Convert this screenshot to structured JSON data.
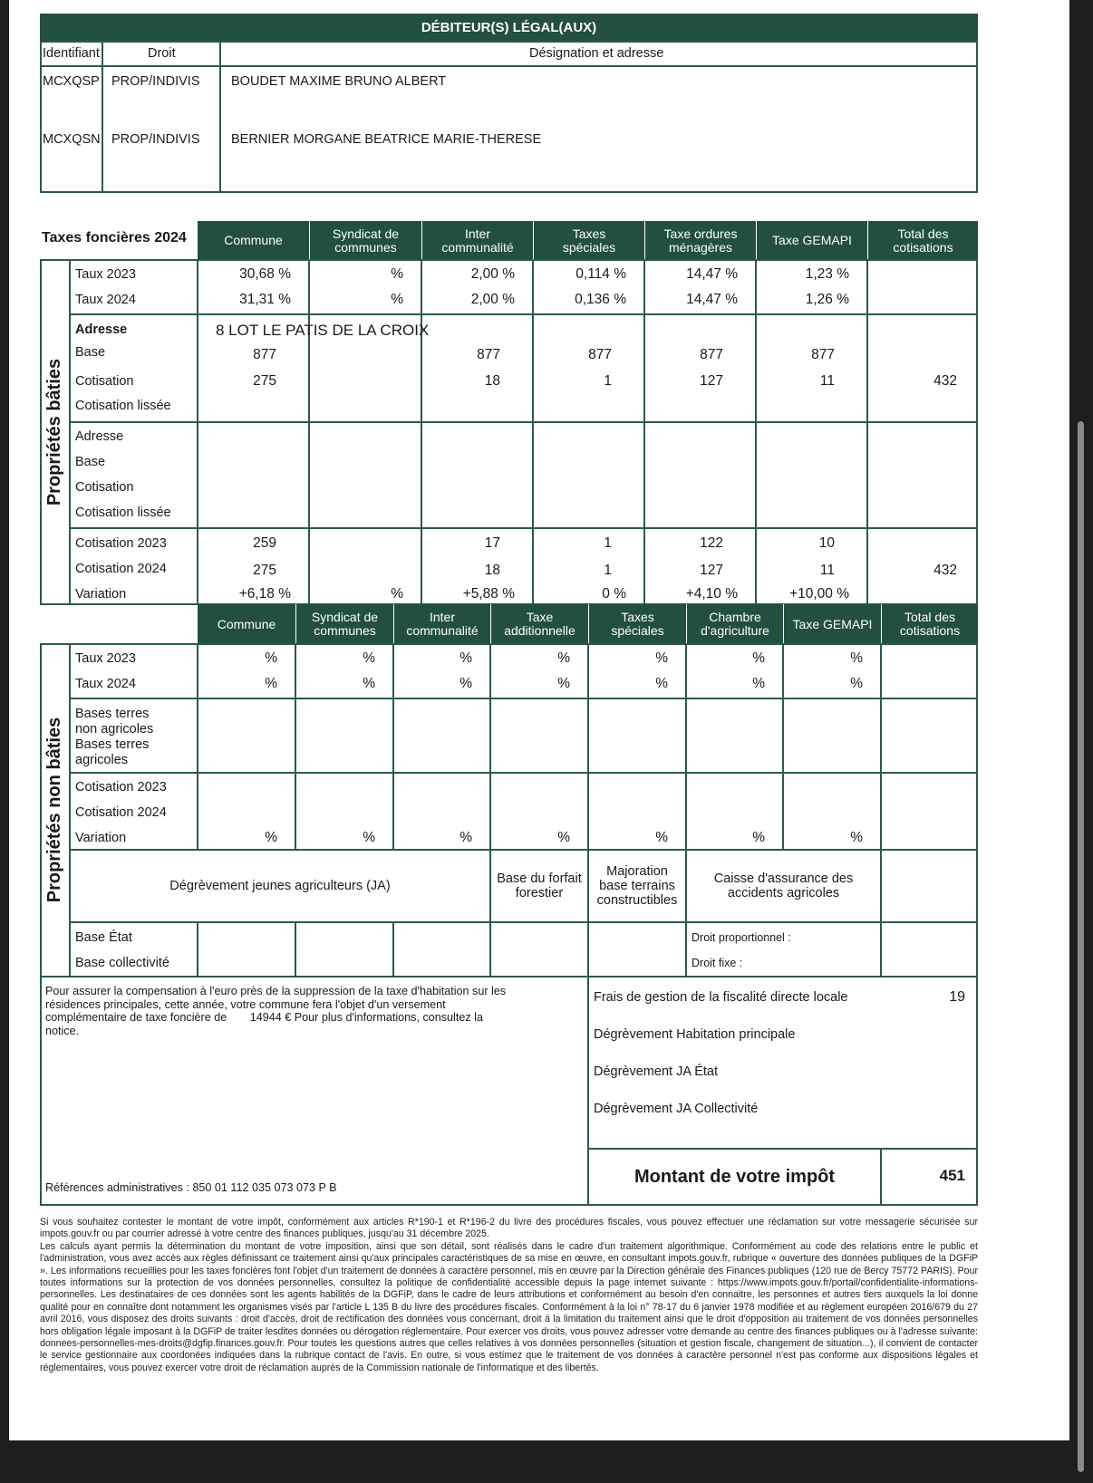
{
  "debiteurs": {
    "title": "DÉBITEUR(S) LÉGAL(AUX)",
    "headers": {
      "identifiant": "Identifiant",
      "droit": "Droit",
      "designation": "Désignation et adresse"
    },
    "rows": [
      {
        "id": "MCXQSP",
        "droit": "PROP/INDIVIS",
        "name": "BOUDET MAXIME BRUNO ALBERT"
      },
      {
        "id": "MCXQSN",
        "droit": "PROP/INDIVIS",
        "name": "BERNIER MORGANE BEATRICE MARIE-THERESE"
      }
    ]
  },
  "baties": {
    "title": "Taxes foncières 2024",
    "side_label": "Propriétés bâties",
    "columns": [
      "Commune",
      "Syndicat de communes",
      "Inter communalité",
      "Taxes spéciales",
      "Taxe ordures ménagères",
      "Taxe GEMAPI",
      "Total des cotisations"
    ],
    "taux": {
      "labels": [
        "Taux 2023",
        "Taux 2024"
      ],
      "rows": [
        [
          "30,68 %",
          "%",
          "2,00 %",
          "0,114 %",
          "14,47 %",
          "1,23 %",
          ""
        ],
        [
          "31,31 %",
          "%",
          "2,00 %",
          "0,136 %",
          "14,47 %",
          "1,26 %",
          ""
        ]
      ]
    },
    "property1": {
      "labels": [
        "Adresse",
        "Base",
        "Cotisation",
        "Cotisation lissée"
      ],
      "address": "8 LOT LE PATIS DE LA CROIX",
      "base": [
        "877",
        "",
        "877",
        "877",
        "877",
        "877",
        ""
      ],
      "cotisation": [
        "275",
        "",
        "18",
        "1",
        "127",
        "11",
        "432"
      ]
    },
    "property2": {
      "labels": [
        "Adresse",
        "Base",
        "Cotisation",
        "Cotisation lissée"
      ]
    },
    "summary": {
      "labels": [
        "Cotisation 2023",
        "Cotisation 2024",
        "Variation"
      ],
      "rows": [
        [
          "259",
          "",
          "17",
          "1",
          "122",
          "10",
          ""
        ],
        [
          "275",
          "",
          "18",
          "1",
          "127",
          "11",
          "432"
        ],
        [
          "+6,18 %",
          "%",
          "+5,88 %",
          "0 %",
          "+4,10 %",
          "+10,00 %",
          ""
        ]
      ]
    }
  },
  "non_baties": {
    "side_label": "Propriétés non bâties",
    "columns": [
      "Commune",
      "Syndicat de communes",
      "Inter communalité",
      "Taxe additionnelle",
      "Taxes spéciales",
      "Chambre d'agriculture",
      "Taxe GEMAPI",
      "Total des cotisations"
    ],
    "taux": {
      "labels": [
        "Taux 2023",
        "Taux 2024"
      ],
      "rows": [
        [
          "%",
          "%",
          "%",
          "%",
          "%",
          "%",
          "%",
          ""
        ],
        [
          "%",
          "%",
          "%",
          "%",
          "%",
          "%",
          "%",
          ""
        ]
      ]
    },
    "bases_labels": [
      "Bases terres",
      "non agricoles",
      "Bases terres",
      "agricoles"
    ],
    "cotisation_labels": [
      "Cotisation 2023",
      "Cotisation 2024",
      "Variation"
    ],
    "variation": [
      "%",
      "%",
      "%",
      "%",
      "%",
      "%",
      "%",
      ""
    ],
    "degrevement_ja": "Dégrèvement jeunes agriculteurs (JA)",
    "base_forfait": "Base du forfait forestier",
    "majoration": "Majoration base terrains constructibles",
    "caisse": "Caisse d'assurance des accidents agricoles",
    "base_labels": [
      "Base État",
      "Base collectivité"
    ],
    "droit_proportionnel": "Droit proportionnel :",
    "droit_fixe": "Droit fixe :"
  },
  "recap": {
    "compensation_text": "Pour assurer la compensation à l'euro près de la suppression de la taxe d'habitation sur les résidences principales, cette année, votre commune fera l'objet d'un versement complémentaire de taxe foncière de",
    "compensation_amount": "14944 €",
    "compensation_suffix": "Pour plus d'informations, consultez la notice.",
    "references": "Références administratives : 850 01 112 035 073 073 P B",
    "items": [
      {
        "label": "Frais de gestion de la fiscalité directe locale",
        "value": "19"
      },
      {
        "label": "Dégrèvement Habitation principale",
        "value": ""
      },
      {
        "label": "Dégrèvement JA État",
        "value": ""
      },
      {
        "label": "Dégrèvement JA Collectivité",
        "value": ""
      }
    ],
    "total_label": "Montant de votre impôt",
    "total_value": "451"
  },
  "footer": {
    "p1": "Si vous souhaitez contester le montant de votre impôt, conformément aux articles R*190-1 et R*196-2 du livre des procédures fiscales, vous pouvez effectuer une réclamation sur votre messagerie sécurisée sur impots.gouv.fr ou par courrier adressé à votre centre des finances publiques, jusqu'au 31 décembre 2025.",
    "p2": "Les calculs ayant permis la détermination du montant de votre imposition, ainsi que son détail, sont réalisés dans le cadre d'un traitement algorithmique. Conformément au code des relations entre le public et l'administration, vous avez accès aux règles définissant ce traitement ainsi qu'aux principales caractéristiques de sa mise en œuvre, en consultant impots.gouv.fr, rubrique « ouverture des données publiques de la DGFiP ». Les informations recueillies pour les taxes foncières font l'objet d'un traitement de données à caractère personnel, mis en œuvre par la Direction générale des Finances publiques (120 rue de Bercy 75772 PARIS). Pour toutes informations sur la protection de vos données personnelles, consultez la politique de confidentialité accessible depuis la page internet suivante : https://www.impots.gouv.fr/portail/confidentialite-informations-personnelles. Les destinataires de ces données sont les agents habilités de la DGFiP, dans le cadre de leurs attributions et conformément au besoin d'en connaitre, les personnes et autres tiers auxquels la loi donne qualité pour en connaître dont notamment les organismes visés par l'article L 135 B du livre des procédures fiscales. Conformément à la loi n° 78-17 du 6 janvier 1978 modifiée et au règlement européen 2016/679 du 27 avril 2016, vous disposez des droits suivants : droit d'accès, droit de rectification des données vous concernant, droit à la limitation du traitement ainsi que le droit d'opposition au traitement de vos données personnelles hors obligation légale imposant à la DGFiP de traiter lesdites données ou dérogation réglementaire. Pour exercer vos droits, vous pouvez adresser votre demande au centre des finances publiques ou à l'adresse suivante: donnees-personnelles-mes-droits@dgfip.finances.gouv.fr. Pour toutes les questions autres que celles relatives à vos données personnelles (situation et gestion fiscale, changement de situation...), il convient de contacter le service gestionnaire aux coordonées indiquées dans la rubrique contact de l'avis. En outre, si vous estimez que le traitement de vos données à caractère personnel n'est pas conforme aux dispositions légales et réglementaires, vous pouvez exercer votre droit de réclamation auprès de la Commission nationale de l'informatique et des libertés."
  },
  "colors": {
    "header_green": "#234f40",
    "border_green": "#2d5a4b",
    "background": "#1e1e1e"
  }
}
